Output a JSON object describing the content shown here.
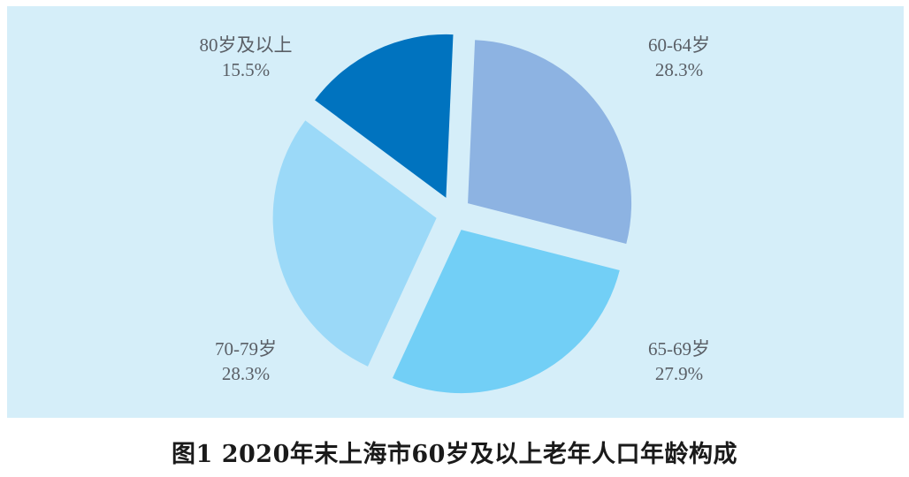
{
  "chart_data": {
    "type": "pie",
    "title": "图1  2020年末上海市60岁及以上老年人口年龄构成",
    "slices": [
      {
        "label": "60-64岁",
        "value": 28.3,
        "value_label": "28.3%",
        "color": "#8db3e2"
      },
      {
        "label": "65-69岁",
        "value": 27.9,
        "value_label": "27.9%",
        "color": "#72cff6"
      },
      {
        "label": "70-79岁",
        "value": 28.3,
        "value_label": "28.3%",
        "color": "#9bd9f8"
      },
      {
        "label": "80岁及以上",
        "value": 15.5,
        "value_label": "15.5%",
        "color": "#0073bf"
      }
    ],
    "legend": "none",
    "background": "#d5eef9"
  }
}
